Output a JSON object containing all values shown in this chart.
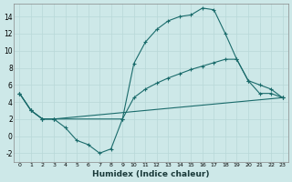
{
  "xlabel": "Humidex (Indice chaleur)",
  "background_color": "#cde8e8",
  "line_color": "#1a6b6b",
  "grid_color": "#b8d8d8",
  "xlim": [
    -0.5,
    23.5
  ],
  "ylim": [
    -3,
    15.5
  ],
  "xticks": [
    0,
    1,
    2,
    3,
    4,
    5,
    6,
    7,
    8,
    9,
    10,
    11,
    12,
    13,
    14,
    15,
    16,
    17,
    18,
    19,
    20,
    21,
    22,
    23
  ],
  "yticks": [
    -2,
    0,
    2,
    4,
    6,
    8,
    10,
    12,
    14
  ],
  "line1_x": [
    0,
    1,
    2,
    3,
    4,
    5,
    6,
    7,
    8,
    9,
    10,
    11,
    12,
    13,
    14,
    15,
    16,
    17,
    18,
    19,
    20,
    21,
    22,
    23
  ],
  "line1_y": [
    5,
    3,
    2,
    2,
    1,
    -0.5,
    -1,
    -2,
    -1.5,
    2,
    8.5,
    11,
    12.5,
    13.5,
    14,
    14.2,
    15,
    14.8,
    12,
    9,
    6.5,
    5,
    5,
    4.5
  ],
  "line2_x": [
    0,
    1,
    2,
    3,
    9,
    10,
    11,
    12,
    13,
    14,
    15,
    16,
    17,
    18,
    19,
    20,
    21,
    22,
    23
  ],
  "line2_y": [
    5,
    3,
    2,
    2,
    2,
    4.5,
    5.5,
    6.2,
    6.8,
    7.3,
    7.8,
    8.2,
    8.6,
    9.0,
    9.0,
    6.5,
    6.0,
    5.5,
    4.5
  ],
  "line3_x": [
    0,
    1,
    2,
    3,
    23
  ],
  "line3_y": [
    5,
    3,
    2,
    2,
    4.5
  ],
  "figsize": [
    3.2,
    2.0
  ],
  "dpi": 100
}
